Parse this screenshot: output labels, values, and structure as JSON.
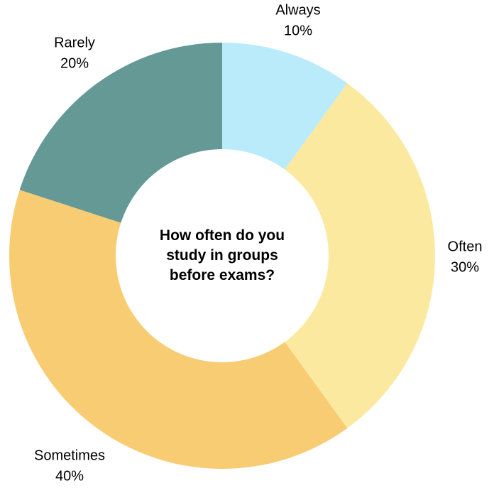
{
  "chart_data": {
    "type": "donut",
    "title": "How often do you study in groups before exams?",
    "categories": [
      "Always",
      "Often",
      "Sometimes",
      "Rarely"
    ],
    "values": [
      10,
      30,
      40,
      20
    ],
    "value_labels": [
      "10%",
      "30%",
      "40%",
      "20%"
    ],
    "colors": [
      "#b9ebfa",
      "#fce9a0",
      "#f7cc73",
      "#649996"
    ]
  }
}
